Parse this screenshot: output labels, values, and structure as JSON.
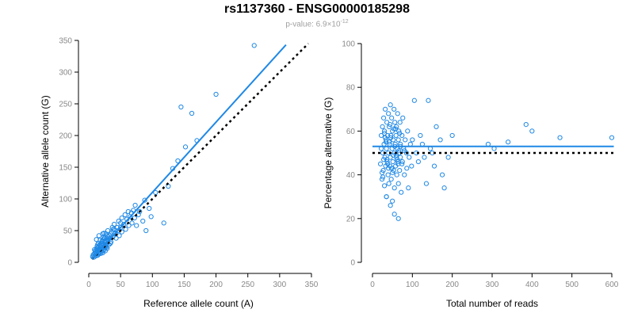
{
  "title": "rs1137360 - ENSG00000185298",
  "subtitle": {
    "prefix": "p-value: 6.9×10",
    "exponent": "-12"
  },
  "colors": {
    "points": "#1f88e5",
    "fit": "#1f88e5",
    "reference": "#000000",
    "tick_text": "#888888"
  },
  "chart_data": [
    {
      "type": "scatter",
      "xlabel": "Reference allele count (A)",
      "ylabel": "Alternative allele count (G)",
      "xlim": [
        0,
        350
      ],
      "ylim": [
        0,
        350
      ],
      "xticks": [
        0,
        50,
        100,
        150,
        200,
        250,
        300,
        350
      ],
      "yticks": [
        0,
        50,
        100,
        150,
        200,
        250,
        300,
        350
      ],
      "fit_line": {
        "x": [
          5,
          310
        ],
        "y": [
          5,
          343
        ]
      },
      "reference_line": {
        "x": [
          5,
          345
        ],
        "y": [
          5,
          345
        ]
      },
      "points": {
        "x": [
          6,
          7,
          8,
          9,
          10,
          10,
          11,
          11,
          12,
          12,
          13,
          13,
          14,
          14,
          15,
          15,
          16,
          16,
          17,
          17,
          18,
          18,
          19,
          19,
          20,
          20,
          21,
          21,
          22,
          22,
          23,
          23,
          24,
          24,
          25,
          25,
          26,
          26,
          27,
          27,
          28,
          28,
          29,
          29,
          30,
          30,
          32,
          32,
          33,
          34,
          35,
          36,
          37,
          38,
          40,
          40,
          42,
          43,
          45,
          46,
          47,
          48,
          50,
          50,
          52,
          52,
          55,
          57,
          58,
          60,
          62,
          63,
          65,
          67,
          68,
          70,
          72,
          73,
          75,
          78,
          80,
          85,
          88,
          90,
          95,
          98,
          105,
          118,
          125,
          132,
          140,
          145,
          152,
          162,
          170,
          200,
          260,
          9,
          11,
          13,
          15,
          17,
          19,
          21,
          23,
          25,
          27,
          29,
          14,
          18,
          22,
          26,
          30,
          34,
          38,
          12,
          16,
          20,
          24,
          28
        ],
        "y": [
          9,
          12,
          8,
          14,
          12,
          18,
          10,
          16,
          13,
          20,
          15,
          22,
          11,
          17,
          14,
          24,
          18,
          13,
          20,
          27,
          16,
          22,
          25,
          14,
          21,
          30,
          18,
          34,
          23,
          15,
          27,
          36,
          20,
          40,
          25,
          32,
          28,
          18,
          33,
          45,
          24,
          38,
          30,
          22,
          35,
          50,
          28,
          42,
          38,
          45,
          32,
          48,
          55,
          40,
          52,
          60,
          45,
          38,
          55,
          50,
          65,
          42,
          62,
          55,
          70,
          48,
          60,
          75,
          52,
          68,
          80,
          58,
          72,
          78,
          62,
          82,
          70,
          90,
          58,
          75,
          80,
          65,
          98,
          50,
          85,
          72,
          110,
          62,
          120,
          148,
          160,
          245,
          182,
          235,
          192,
          265,
          342,
          20,
          15,
          25,
          30,
          22,
          28,
          33,
          18,
          38,
          26,
          42,
          28,
          35,
          45,
          24,
          40,
          30,
          52,
          36,
          42,
          28,
          46,
          32
        ]
      }
    },
    {
      "type": "scatter",
      "xlabel": "Total number of reads",
      "ylabel": "Percentage alternative (G)",
      "xlim": [
        0,
        600
      ],
      "ylim": [
        0,
        100
      ],
      "xticks": [
        0,
        100,
        200,
        300,
        400,
        500,
        600
      ],
      "yticks": [
        0,
        20,
        40,
        60,
        80,
        100
      ],
      "fit_line": {
        "x": [
          0,
          605
        ],
        "y": [
          53,
          53
        ]
      },
      "reference_line": {
        "x": [
          0,
          605
        ],
        "y": [
          50,
          50
        ]
      },
      "points": {
        "x": [
          20,
          22,
          24,
          25,
          26,
          27,
          28,
          29,
          30,
          30,
          31,
          32,
          33,
          34,
          35,
          35,
          36,
          37,
          38,
          39,
          40,
          40,
          41,
          42,
          43,
          44,
          45,
          45,
          46,
          47,
          48,
          49,
          50,
          50,
          51,
          52,
          53,
          54,
          55,
          55,
          56,
          57,
          58,
          59,
          60,
          60,
          61,
          62,
          63,
          64,
          65,
          65,
          66,
          67,
          68,
          69,
          70,
          70,
          72,
          74,
          75,
          76,
          78,
          80,
          82,
          85,
          88,
          90,
          92,
          95,
          98,
          100,
          105,
          110,
          115,
          120,
          125,
          130,
          135,
          140,
          145,
          150,
          155,
          160,
          170,
          175,
          180,
          190,
          200,
          290,
          305,
          340,
          385,
          400,
          470,
          600,
          22,
          28,
          34,
          40,
          46,
          52,
          58,
          64,
          70,
          24,
          30,
          36,
          42,
          48,
          54,
          60,
          66,
          26,
          32,
          38,
          44,
          50,
          56,
          62,
          68,
          74,
          80,
          86,
          35,
          45,
          55,
          65
        ],
        "y": [
          45,
          58,
          38,
          62,
          50,
          42,
          66,
          54,
          35,
          60,
          48,
          70,
          44,
          56,
          52,
          30,
          64,
          46,
          58,
          40,
          68,
          50,
          36,
          62,
          54,
          44,
          72,
          48,
          58,
          38,
          66,
          52,
          28,
          60,
          46,
          56,
          42,
          70,
          50,
          34,
          64,
          54,
          44,
          58,
          48,
          62,
          40,
          52,
          68,
          46,
          56,
          36,
          60,
          50,
          42,
          64,
          54,
          48,
          32,
          58,
          46,
          66,
          52,
          40,
          56,
          50,
          60,
          34,
          48,
          54,
          44,
          56,
          74,
          50,
          46,
          58,
          54,
          48,
          36,
          74,
          52,
          50,
          44,
          62,
          56,
          40,
          34,
          48,
          58,
          54,
          52,
          55,
          63,
          60,
          57,
          57,
          52,
          47,
          55,
          43,
          57,
          49,
          61,
          45,
          53,
          41,
          59,
          47,
          55,
          43,
          61,
          49,
          51,
          39,
          57,
          45,
          63,
          41,
          53,
          47,
          59,
          45,
          51,
          43,
          30,
          26,
          22,
          20
        ]
      }
    }
  ]
}
